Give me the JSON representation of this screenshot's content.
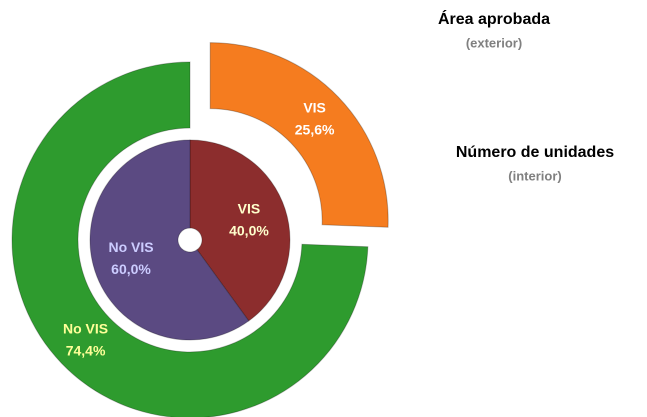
{
  "chart_data": [
    {
      "type": "donut",
      "title": "Área aprobada",
      "subtitle": "(exterior)",
      "categories": [
        "VIS",
        "No VIS"
      ],
      "values": [
        25.6,
        74.4
      ],
      "value_labels": [
        "25,6%",
        "74,4%"
      ],
      "colors": [
        "#f57c1f",
        "#2e9b2e"
      ]
    },
    {
      "type": "pie",
      "title": "Número de unidades",
      "subtitle": "(interior)",
      "categories": [
        "VIS",
        "No VIS"
      ],
      "values": [
        40.0,
        60.0
      ],
      "value_labels": [
        "40,0%",
        "60,0%"
      ],
      "colors": [
        "#8c2d2d",
        "#5b4a82"
      ]
    }
  ]
}
